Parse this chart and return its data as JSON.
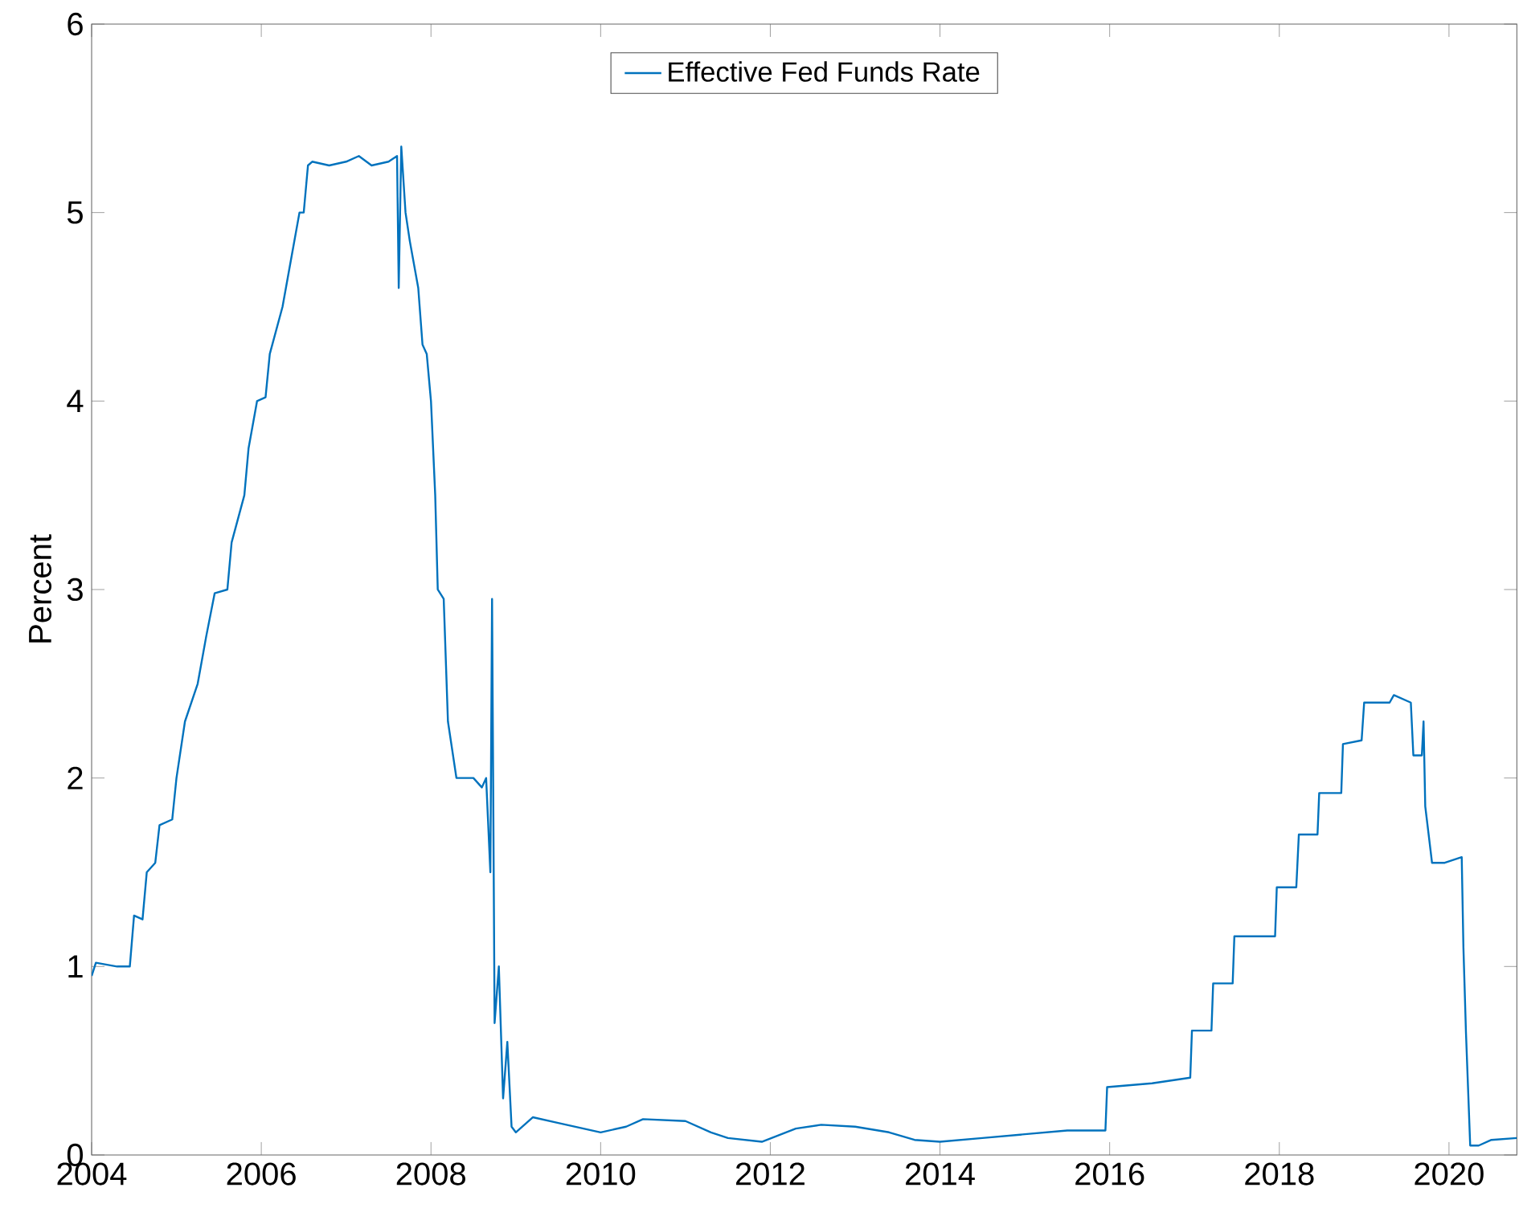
{
  "chart_data": {
    "type": "line",
    "ylabel": "Percent",
    "legend": "top",
    "grid": false,
    "xlim": [
      2004,
      2020.8
    ],
    "xticks": [
      2004,
      2006,
      2008,
      2010,
      2012,
      2014,
      2016,
      2018,
      2020
    ],
    "ylim": [
      0,
      6
    ],
    "yticks": [
      0,
      1,
      2,
      3,
      4,
      5,
      6
    ],
    "series": [
      {
        "name": "Effective Fed Funds Rate",
        "color": "#0072bd",
        "x": [
          2004.0,
          2004.05,
          2004.3,
          2004.45,
          2004.5,
          2004.6,
          2004.65,
          2004.75,
          2004.8,
          2004.95,
          2005.0,
          2005.1,
          2005.25,
          2005.35,
          2005.45,
          2005.6,
          2005.65,
          2005.8,
          2005.85,
          2005.95,
          2006.05,
          2006.1,
          2006.25,
          2006.35,
          2006.45,
          2006.5,
          2006.55,
          2006.6,
          2006.8,
          2007.0,
          2007.15,
          2007.3,
          2007.5,
          2007.6,
          2007.62,
          2007.65,
          2007.7,
          2007.75,
          2007.85,
          2007.9,
          2007.95,
          2008.0,
          2008.05,
          2008.08,
          2008.15,
          2008.2,
          2008.3,
          2008.5,
          2008.6,
          2008.65,
          2008.7,
          2008.72,
          2008.75,
          2008.8,
          2008.85,
          2008.9,
          2008.95,
          2009.0,
          2009.2,
          2009.5,
          2010.0,
          2010.3,
          2010.5,
          2011.0,
          2011.3,
          2011.5,
          2011.9,
          2012.3,
          2012.6,
          2013.0,
          2013.4,
          2013.7,
          2014.0,
          2014.5,
          2015.0,
          2015.5,
          2015.95,
          2015.97,
          2016.5,
          2016.95,
          2016.97,
          2017.2,
          2017.22,
          2017.45,
          2017.47,
          2017.95,
          2017.97,
          2018.2,
          2018.23,
          2018.45,
          2018.47,
          2018.73,
          2018.75,
          2018.97,
          2019.0,
          2019.3,
          2019.35,
          2019.55,
          2019.58,
          2019.68,
          2019.7,
          2019.72,
          2019.8,
          2019.95,
          2020.15,
          2020.17,
          2020.2,
          2020.25,
          2020.35,
          2020.5,
          2020.8
        ],
        "values": [
          0.95,
          1.02,
          1.0,
          1.0,
          1.27,
          1.25,
          1.5,
          1.55,
          1.75,
          1.78,
          2.0,
          2.3,
          2.5,
          2.75,
          2.98,
          3.0,
          3.25,
          3.5,
          3.75,
          4.0,
          4.02,
          4.25,
          4.5,
          4.75,
          5.0,
          5.0,
          5.25,
          5.27,
          5.25,
          5.27,
          5.3,
          5.25,
          5.27,
          5.3,
          4.6,
          5.35,
          5.0,
          4.85,
          4.6,
          4.3,
          4.25,
          4.0,
          3.5,
          3.0,
          2.95,
          2.3,
          2.0,
          2.0,
          1.95,
          2.0,
          1.5,
          2.95,
          0.7,
          1.0,
          0.3,
          0.6,
          0.15,
          0.12,
          0.2,
          0.17,
          0.12,
          0.15,
          0.19,
          0.18,
          0.12,
          0.09,
          0.07,
          0.14,
          0.16,
          0.15,
          0.12,
          0.08,
          0.07,
          0.09,
          0.11,
          0.13,
          0.13,
          0.36,
          0.38,
          0.41,
          0.66,
          0.66,
          0.91,
          0.91,
          1.16,
          1.16,
          1.42,
          1.42,
          1.7,
          1.7,
          1.92,
          1.92,
          2.18,
          2.2,
          2.4,
          2.4,
          2.44,
          2.4,
          2.12,
          2.12,
          2.3,
          1.85,
          1.55,
          1.55,
          1.58,
          1.1,
          0.65,
          0.05,
          0.05,
          0.08,
          0.09
        ]
      }
    ]
  }
}
